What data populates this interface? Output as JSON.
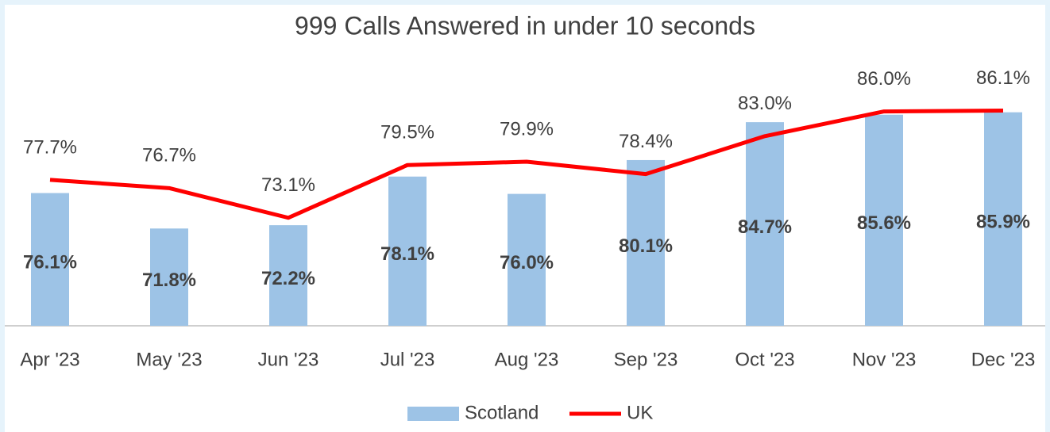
{
  "chart_data": {
    "type": "combo",
    "title": "999 Calls Answered in under 10 seconds",
    "categories": [
      "Apr '23",
      "May '23",
      "Jun '23",
      "Jul '23",
      "Aug '23",
      "Sep '23",
      "Oct '23",
      "Nov '23",
      "Dec '23"
    ],
    "series": [
      {
        "name": "Scotland",
        "type": "bar",
        "color": "#9dc3e6",
        "values": [
          76.1,
          71.8,
          72.2,
          78.1,
          76.0,
          80.1,
          84.7,
          85.6,
          85.9
        ],
        "value_labels": [
          "76.1%",
          "71.8%",
          "72.2%",
          "78.1%",
          "76.0%",
          "80.1%",
          "84.7%",
          "85.6%",
          "85.9%"
        ]
      },
      {
        "name": "UK",
        "type": "line",
        "color": "#ff0000",
        "values": [
          77.7,
          76.7,
          73.1,
          79.5,
          79.9,
          78.4,
          83.0,
          86.0,
          86.1
        ],
        "value_labels": [
          "77.7%",
          "76.7%",
          "73.1%",
          "79.5%",
          "79.9%",
          "78.4%",
          "83.0%",
          "86.0%",
          "86.1%"
        ]
      }
    ],
    "ylim": [
      60,
      90
    ],
    "legend": "bottom"
  }
}
